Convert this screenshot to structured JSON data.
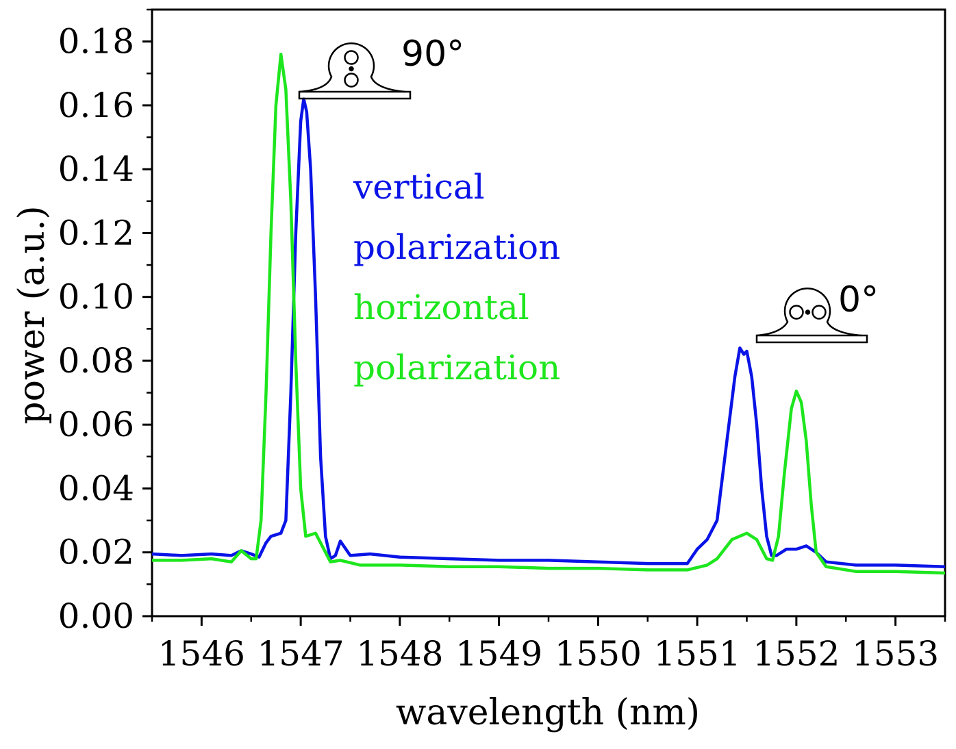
{
  "chart_data": {
    "type": "line",
    "title": "",
    "xlabel": "wavelength (nm)",
    "ylabel": "power (a.u.)",
    "xlim": [
      1545.5,
      1553.5
    ],
    "ylim": [
      0.0,
      0.19
    ],
    "grid": false,
    "xticks": [
      1546,
      1547,
      1548,
      1549,
      1550,
      1551,
      1552,
      1553
    ],
    "xtick_labels": [
      "1546",
      "1547",
      "1548",
      "1549",
      "1550",
      "1551",
      "1552",
      "1553"
    ],
    "yticks": [
      0.0,
      0.02,
      0.04,
      0.06,
      0.08,
      0.1,
      0.12,
      0.14,
      0.16,
      0.18
    ],
    "ytick_labels": [
      "0.00",
      "0.02",
      "0.04",
      "0.06",
      "0.08",
      "0.10",
      "0.12",
      "0.14",
      "0.16",
      "0.18"
    ],
    "series": [
      {
        "name": "vertical polarization",
        "color": "#0a14e6",
        "points": [
          [
            1545.5,
            0.0195
          ],
          [
            1545.8,
            0.019
          ],
          [
            1546.1,
            0.0195
          ],
          [
            1546.3,
            0.019
          ],
          [
            1546.4,
            0.0205
          ],
          [
            1546.5,
            0.0195
          ],
          [
            1546.58,
            0.0185
          ],
          [
            1546.65,
            0.023
          ],
          [
            1546.7,
            0.025
          ],
          [
            1546.8,
            0.026
          ],
          [
            1546.85,
            0.03
          ],
          [
            1546.9,
            0.07
          ],
          [
            1546.95,
            0.12
          ],
          [
            1547.0,
            0.155
          ],
          [
            1547.03,
            0.162
          ],
          [
            1547.06,
            0.158
          ],
          [
            1547.1,
            0.14
          ],
          [
            1547.15,
            0.1
          ],
          [
            1547.2,
            0.05
          ],
          [
            1547.25,
            0.025
          ],
          [
            1547.3,
            0.018
          ],
          [
            1547.35,
            0.019
          ],
          [
            1547.4,
            0.0235
          ],
          [
            1547.5,
            0.019
          ],
          [
            1547.7,
            0.0195
          ],
          [
            1548.0,
            0.0185
          ],
          [
            1548.5,
            0.018
          ],
          [
            1549.0,
            0.0175
          ],
          [
            1549.5,
            0.0175
          ],
          [
            1550.0,
            0.017
          ],
          [
            1550.5,
            0.0165
          ],
          [
            1550.9,
            0.0165
          ],
          [
            1551.0,
            0.021
          ],
          [
            1551.1,
            0.024
          ],
          [
            1551.2,
            0.03
          ],
          [
            1551.3,
            0.055
          ],
          [
            1551.38,
            0.075
          ],
          [
            1551.43,
            0.084
          ],
          [
            1551.47,
            0.082
          ],
          [
            1551.5,
            0.083
          ],
          [
            1551.55,
            0.075
          ],
          [
            1551.6,
            0.06
          ],
          [
            1551.65,
            0.04
          ],
          [
            1551.7,
            0.025
          ],
          [
            1551.75,
            0.019
          ],
          [
            1551.8,
            0.019
          ],
          [
            1551.9,
            0.021
          ],
          [
            1552.0,
            0.021
          ],
          [
            1552.1,
            0.022
          ],
          [
            1552.2,
            0.02
          ],
          [
            1552.3,
            0.017
          ],
          [
            1552.6,
            0.016
          ],
          [
            1553.0,
            0.016
          ],
          [
            1553.5,
            0.0155
          ]
        ]
      },
      {
        "name": "horizontal polarization",
        "color": "#1ee61e",
        "points": [
          [
            1545.5,
            0.0175
          ],
          [
            1545.8,
            0.0175
          ],
          [
            1546.1,
            0.018
          ],
          [
            1546.3,
            0.017
          ],
          [
            1546.4,
            0.0205
          ],
          [
            1546.5,
            0.018
          ],
          [
            1546.55,
            0.018
          ],
          [
            1546.6,
            0.03
          ],
          [
            1546.65,
            0.07
          ],
          [
            1546.7,
            0.12
          ],
          [
            1546.75,
            0.16
          ],
          [
            1546.8,
            0.176
          ],
          [
            1546.85,
            0.165
          ],
          [
            1546.9,
            0.13
          ],
          [
            1546.95,
            0.08
          ],
          [
            1547.0,
            0.04
          ],
          [
            1547.05,
            0.025
          ],
          [
            1547.15,
            0.026
          ],
          [
            1547.25,
            0.02
          ],
          [
            1547.3,
            0.017
          ],
          [
            1547.4,
            0.0175
          ],
          [
            1547.6,
            0.016
          ],
          [
            1548.0,
            0.016
          ],
          [
            1548.5,
            0.0155
          ],
          [
            1549.0,
            0.0155
          ],
          [
            1549.5,
            0.015
          ],
          [
            1550.0,
            0.015
          ],
          [
            1550.5,
            0.0145
          ],
          [
            1550.9,
            0.0145
          ],
          [
            1551.1,
            0.016
          ],
          [
            1551.2,
            0.018
          ],
          [
            1551.35,
            0.024
          ],
          [
            1551.5,
            0.026
          ],
          [
            1551.6,
            0.024
          ],
          [
            1551.7,
            0.018
          ],
          [
            1551.76,
            0.0175
          ],
          [
            1551.82,
            0.025
          ],
          [
            1551.88,
            0.045
          ],
          [
            1551.95,
            0.065
          ],
          [
            1552.0,
            0.0705
          ],
          [
            1552.05,
            0.067
          ],
          [
            1552.1,
            0.055
          ],
          [
            1552.15,
            0.035
          ],
          [
            1552.2,
            0.02
          ],
          [
            1552.3,
            0.0155
          ],
          [
            1552.6,
            0.014
          ],
          [
            1553.0,
            0.014
          ],
          [
            1553.5,
            0.0135
          ]
        ]
      }
    ],
    "legend": {
      "placement": "center",
      "entries": [
        {
          "line1": "vertical",
          "line2": "polarization",
          "color": "#0a14e6"
        },
        {
          "line1": "horizontal",
          "line2": "polarization",
          "color": "#1ee61e"
        }
      ]
    },
    "annotations": [
      {
        "text": "90°",
        "near_x": 1547.0,
        "near_y": 0.17
      },
      {
        "text": "0°",
        "near_x": 1551.9,
        "near_y": 0.09
      }
    ]
  }
}
